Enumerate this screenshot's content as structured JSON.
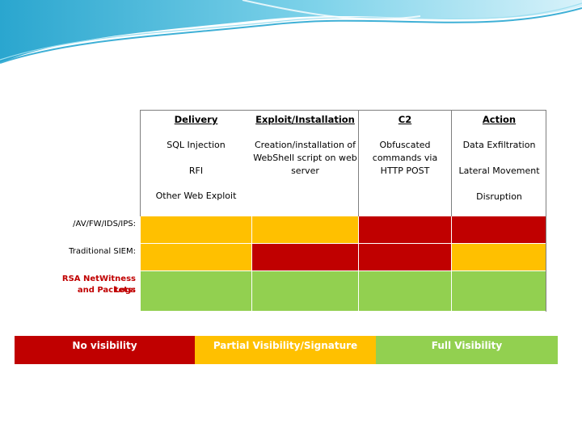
{
  "matrix": {
    "columns": [
      {
        "title": "Delivery",
        "items": [
          "SQL Injection",
          "RFI",
          "Other Web Exploit"
        ]
      },
      {
        "title": "Exploit/Installation",
        "items": [
          "Creation/installation of",
          "WebShell script on web",
          "server"
        ]
      },
      {
        "title": "C2",
        "items": [
          "Obfuscated",
          "commands via",
          "HTTP POST"
        ]
      },
      {
        "title": "Action",
        "items": [
          "Data Exfiltration",
          "Lateral Movement",
          "Disruption"
        ]
      }
    ],
    "rows": [
      {
        "label": "/AV/FW/IDS/IPS:",
        "levels": [
          "partial",
          "partial",
          "none",
          "none"
        ]
      },
      {
        "label": "Traditional SIEM:",
        "levels": [
          "partial",
          "none",
          "none",
          "partial"
        ]
      },
      {
        "label_line1": "RSA NetWitness Logs",
        "label_line2": "and Packets:",
        "levels": [
          "full",
          "full",
          "full",
          "full"
        ]
      }
    ]
  },
  "legend": {
    "none": "No visibility",
    "partial": "Partial Visibility/Signature",
    "full": "Full Visibility"
  },
  "colors": {
    "none": "#c00000",
    "partial": "#ffc000",
    "full": "#92d050",
    "accent": "#4ab8d9"
  }
}
